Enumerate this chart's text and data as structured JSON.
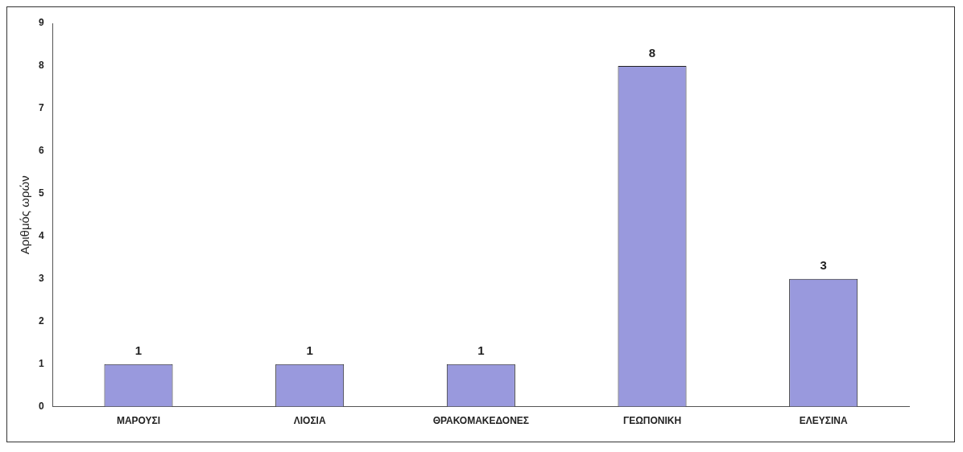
{
  "chart_data": {
    "type": "bar",
    "ylabel": "Αριθμός ωρών",
    "categories": [
      "ΜΑΡΟΥΣΙ",
      "ΛΙΟΣΙΑ",
      "ΘΡΑΚΟΜΑΚΕΔΟΝΕΣ",
      "ΓΕΩΠΟΝΙΚΗ",
      "ΕΛΕΥΣΙΝΑ"
    ],
    "values": [
      1,
      1,
      1,
      8,
      3
    ],
    "color": "#9999dd",
    "ylim": [
      0,
      9
    ],
    "yticks": [
      0,
      1,
      2,
      3,
      4,
      5,
      6,
      7,
      8,
      9
    ],
    "grid": false,
    "legend": false,
    "data_labels": true
  }
}
